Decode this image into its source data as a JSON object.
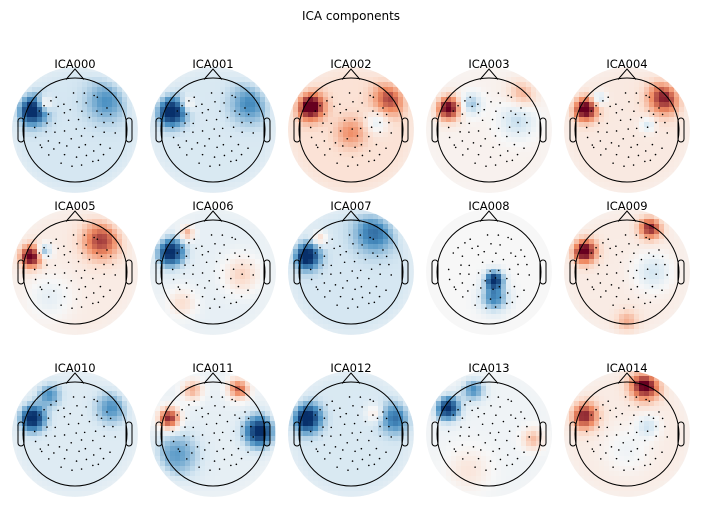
{
  "figure": {
    "title": "ICA components"
  },
  "colors": {
    "negative_strong": "#08306b",
    "negative_mid": "#4a90c2",
    "negative_light": "#d6e7f2",
    "neutral": "#f7f7f7",
    "positive_light": "#fbe0d2",
    "positive_mid": "#ef8a62",
    "positive_strong": "#67001f",
    "outline": "#000000",
    "contour": "#000000",
    "sensor_dot": "#000000"
  },
  "chart_data": {
    "type": "heatmap",
    "colormap": "RdBu_r",
    "grid": {
      "rows": 3,
      "cols": 5
    },
    "components": [
      {
        "name": "ICA000",
        "base": -0.2,
        "blobs": [
          {
            "x": -0.82,
            "y": 0.38,
            "a": -1.0,
            "s": 0.18
          },
          {
            "x": -0.6,
            "y": 0.5,
            "a": 0.5,
            "s": 0.1
          },
          {
            "x": 0.6,
            "y": 0.55,
            "a": -0.35,
            "s": 0.25
          }
        ]
      },
      {
        "name": "ICA001",
        "base": -0.18,
        "blobs": [
          {
            "x": -0.8,
            "y": 0.35,
            "a": -1.0,
            "s": 0.18
          },
          {
            "x": -0.5,
            "y": 0.5,
            "a": 0.3,
            "s": 0.1
          },
          {
            "x": 0.7,
            "y": 0.5,
            "a": -0.4,
            "s": 0.25
          }
        ]
      },
      {
        "name": "ICA002",
        "base": 0.18,
        "blobs": [
          {
            "x": -0.78,
            "y": 0.45,
            "a": 1.0,
            "s": 0.18
          },
          {
            "x": 0.75,
            "y": 0.6,
            "a": 0.6,
            "s": 0.22
          },
          {
            "x": 0.0,
            "y": -0.05,
            "a": 0.35,
            "s": 0.2
          },
          {
            "x": 0.5,
            "y": 0.15,
            "a": -0.3,
            "s": 0.15
          }
        ]
      },
      {
        "name": "ICA003",
        "base": 0.05,
        "blobs": [
          {
            "x": -0.78,
            "y": 0.42,
            "a": 1.0,
            "s": 0.16
          },
          {
            "x": -0.35,
            "y": 0.5,
            "a": -0.4,
            "s": 0.15
          },
          {
            "x": 0.55,
            "y": 0.2,
            "a": -0.3,
            "s": 0.25
          },
          {
            "x": 0.65,
            "y": 0.7,
            "a": 0.35,
            "s": 0.2
          }
        ]
      },
      {
        "name": "ICA004",
        "base": 0.12,
        "blobs": [
          {
            "x": -0.8,
            "y": 0.4,
            "a": 1.0,
            "s": 0.16
          },
          {
            "x": -0.55,
            "y": 0.6,
            "a": -0.4,
            "s": 0.1
          },
          {
            "x": 0.72,
            "y": 0.62,
            "a": 0.8,
            "s": 0.22
          },
          {
            "x": 0.4,
            "y": 0.1,
            "a": -0.3,
            "s": 0.1
          }
        ]
      },
      {
        "name": "ICA005",
        "base": 0.1,
        "blobs": [
          {
            "x": -0.85,
            "y": 0.3,
            "a": 1.0,
            "s": 0.15
          },
          {
            "x": -0.6,
            "y": 0.4,
            "a": -0.6,
            "s": 0.1
          },
          {
            "x": 0.5,
            "y": 0.6,
            "a": 0.7,
            "s": 0.25
          },
          {
            "x": -0.5,
            "y": -0.5,
            "a": -0.2,
            "s": 0.3
          }
        ]
      },
      {
        "name": "ICA006",
        "base": -0.1,
        "blobs": [
          {
            "x": -0.82,
            "y": 0.38,
            "a": -1.0,
            "s": 0.18
          },
          {
            "x": -0.5,
            "y": 0.75,
            "a": 0.5,
            "s": 0.1
          },
          {
            "x": 0.55,
            "y": -0.05,
            "a": 0.35,
            "s": 0.25
          },
          {
            "x": -0.6,
            "y": -0.6,
            "a": 0.3,
            "s": 0.2
          }
        ]
      },
      {
        "name": "ICA007",
        "base": -0.2,
        "blobs": [
          {
            "x": -0.85,
            "y": 0.3,
            "a": -1.0,
            "s": 0.16
          },
          {
            "x": -0.6,
            "y": 0.65,
            "a": 0.4,
            "s": 0.1
          },
          {
            "x": 0.45,
            "y": 0.75,
            "a": -0.5,
            "s": 0.25
          }
        ]
      },
      {
        "name": "ICA008",
        "base": 0.0,
        "blobs": [
          {
            "x": 0.1,
            "y": -0.15,
            "a": -1.0,
            "s": 0.12
          },
          {
            "x": 0.1,
            "y": -0.5,
            "a": -0.6,
            "s": 0.18
          }
        ]
      },
      {
        "name": "ICA009",
        "base": 0.1,
        "blobs": [
          {
            "x": -0.82,
            "y": 0.4,
            "a": 1.0,
            "s": 0.16
          },
          {
            "x": 0.45,
            "y": 0.85,
            "a": 0.8,
            "s": 0.15
          },
          {
            "x": 0.5,
            "y": 0.0,
            "a": -0.3,
            "s": 0.25
          },
          {
            "x": 0.0,
            "y": -0.95,
            "a": 0.3,
            "s": 0.15
          }
        ]
      },
      {
        "name": "ICA010",
        "base": -0.15,
        "blobs": [
          {
            "x": -0.82,
            "y": 0.3,
            "a": -1.0,
            "s": 0.16
          },
          {
            "x": -0.5,
            "y": 0.75,
            "a": -0.4,
            "s": 0.15
          },
          {
            "x": 0.7,
            "y": 0.5,
            "a": -0.4,
            "s": 0.2
          }
        ]
      },
      {
        "name": "ICA011",
        "base": -0.1,
        "blobs": [
          {
            "x": -0.85,
            "y": 0.3,
            "a": 1.0,
            "s": 0.15
          },
          {
            "x": -0.4,
            "y": 0.85,
            "a": 0.5,
            "s": 0.15
          },
          {
            "x": 0.5,
            "y": 0.88,
            "a": 0.8,
            "s": 0.15
          },
          {
            "x": 0.9,
            "y": 0.05,
            "a": -1.0,
            "s": 0.2
          },
          {
            "x": -0.7,
            "y": -0.4,
            "a": -0.4,
            "s": 0.3
          }
        ]
      },
      {
        "name": "ICA012",
        "base": -0.18,
        "blobs": [
          {
            "x": -0.85,
            "y": 0.3,
            "a": -1.0,
            "s": 0.18
          },
          {
            "x": 0.85,
            "y": 0.3,
            "a": -0.5,
            "s": 0.2
          },
          {
            "x": 0.45,
            "y": 0.4,
            "a": 0.3,
            "s": 0.12
          }
        ]
      },
      {
        "name": "ICA013",
        "base": -0.05,
        "blobs": [
          {
            "x": -0.8,
            "y": 0.5,
            "a": -1.0,
            "s": 0.16
          },
          {
            "x": -0.3,
            "y": 0.85,
            "a": -0.5,
            "s": 0.15
          },
          {
            "x": 0.85,
            "y": -0.1,
            "a": 0.4,
            "s": 0.15
          },
          {
            "x": -0.4,
            "y": -0.7,
            "a": 0.2,
            "s": 0.3
          }
        ]
      },
      {
        "name": "ICA014",
        "base": 0.1,
        "blobs": [
          {
            "x": -0.82,
            "y": 0.35,
            "a": 0.8,
            "s": 0.18
          },
          {
            "x": 0.35,
            "y": 0.95,
            "a": 1.0,
            "s": 0.2
          },
          {
            "x": 0.4,
            "y": 0.15,
            "a": -0.3,
            "s": 0.15
          },
          {
            "x": 0.0,
            "y": -0.3,
            "a": -0.15,
            "s": 0.3
          }
        ]
      }
    ]
  }
}
